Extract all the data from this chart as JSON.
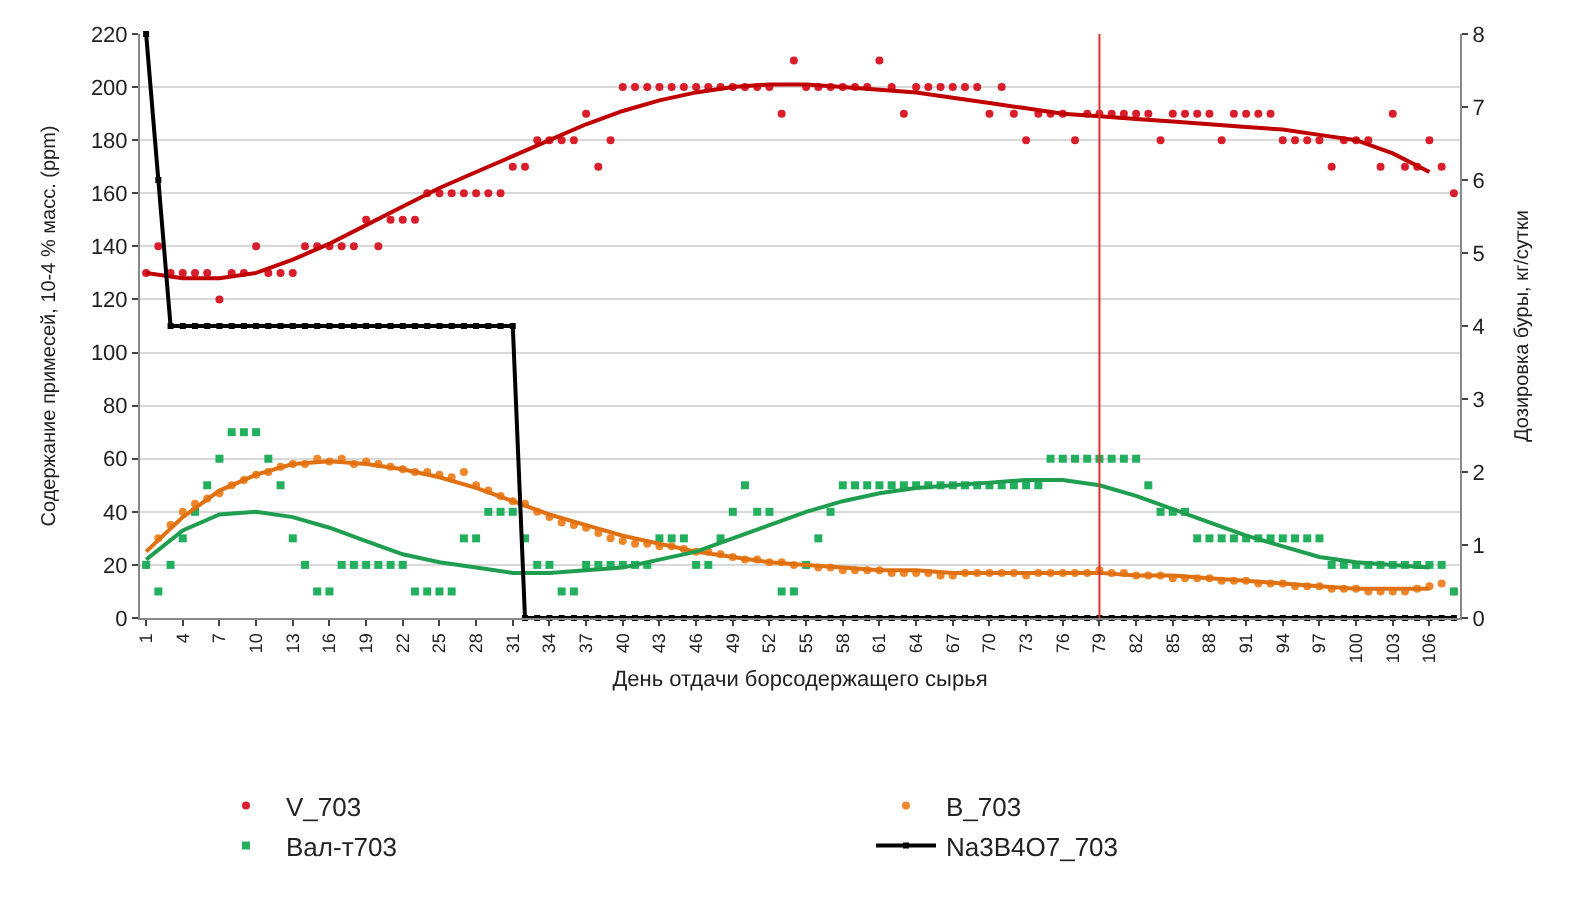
{
  "chart_data": {
    "type": "scatter",
    "xlabel": "День отдачи борсодержащего сырья",
    "ylabel": "Содержание примесей, 10-4 % масс. (ppm)",
    "y2label": "Дозировка буры, кг/сутки",
    "categories": [
      "1",
      null,
      null,
      "4",
      null,
      null,
      "7",
      null,
      null,
      "10",
      null,
      null,
      "13",
      null,
      null,
      "16",
      null,
      null,
      "19",
      null,
      null,
      "22",
      null,
      null,
      "25",
      null,
      null,
      "28",
      null,
      null,
      "31",
      null,
      null,
      "34",
      null,
      null,
      "37",
      null,
      null,
      "40",
      null,
      null,
      "43",
      null,
      null,
      "46",
      null,
      null,
      "49",
      null,
      null,
      "52",
      null,
      null,
      "55",
      null,
      null,
      "58",
      null,
      null,
      "61",
      null,
      null,
      "64",
      null,
      null,
      "67",
      null,
      null,
      "70",
      null,
      null,
      "73",
      null,
      null,
      "76",
      null,
      null,
      "79",
      null,
      null,
      "82",
      null,
      null,
      "85",
      null,
      null,
      "88",
      null,
      null,
      "91",
      null,
      null,
      "94",
      null,
      null,
      "97",
      null,
      null,
      "100",
      null,
      null,
      "103",
      null,
      null,
      "106",
      null,
      null
    ],
    "ylim": [
      0,
      220
    ],
    "yticks": [
      0,
      20,
      40,
      60,
      80,
      100,
      120,
      140,
      160,
      180,
      200,
      220
    ],
    "y2lim": [
      0,
      8
    ],
    "y2ticks": [
      0,
      1,
      2,
      3,
      4,
      5,
      6,
      7,
      8
    ],
    "grid": "y",
    "legend": "bottom",
    "ref_lines": [
      {
        "axis": "x",
        "value": "79",
        "color": "#e03030"
      }
    ],
    "series": [
      {
        "name": "V_703",
        "marker": "circle",
        "color": "#d81e2a",
        "values": [
          130,
          140,
          130,
          130,
          130,
          130,
          120,
          130,
          130,
          140,
          130,
          130,
          130,
          140,
          140,
          140,
          140,
          140,
          150,
          140,
          150,
          150,
          150,
          160,
          160,
          160,
          160,
          160,
          160,
          160,
          170,
          170,
          180,
          180,
          180,
          180,
          190,
          170,
          180,
          200,
          200,
          200,
          200,
          200,
          200,
          200,
          200,
          200,
          200,
          200,
          200,
          200,
          190,
          210,
          200,
          200,
          200,
          200,
          200,
          200,
          210,
          200,
          190,
          200,
          200,
          200,
          200,
          200,
          200,
          190,
          200,
          190,
          180,
          190,
          190,
          190,
          180,
          190,
          190,
          190,
          190,
          190,
          190,
          180,
          190,
          190,
          190,
          190,
          180,
          190,
          190,
          190,
          190,
          180,
          180,
          180,
          180,
          170,
          180,
          180,
          180,
          170,
          190,
          170,
          170,
          180,
          170,
          160
        ]
      },
      {
        "name": "B_703",
        "marker": "circle",
        "color": "#f0862a",
        "values": [
          20,
          30,
          35,
          40,
          43,
          45,
          47,
          50,
          52,
          54,
          55,
          57,
          58,
          58,
          60,
          59,
          60,
          58,
          59,
          58,
          57,
          56,
          55,
          55,
          54,
          53,
          55,
          50,
          48,
          46,
          44,
          43,
          40,
          38,
          36,
          35,
          34,
          32,
          30,
          29,
          28,
          28,
          27,
          27,
          26,
          25,
          25,
          24,
          23,
          22,
          22,
          21,
          21,
          20,
          20,
          19,
          19,
          18,
          18,
          18,
          18,
          17,
          17,
          17,
          17,
          16,
          16,
          17,
          17,
          17,
          17,
          17,
          16,
          17,
          17,
          17,
          17,
          17,
          18,
          17,
          17,
          16,
          16,
          16,
          15,
          15,
          15,
          15,
          14,
          14,
          14,
          13,
          13,
          13,
          12,
          12,
          12,
          11,
          11,
          11,
          10,
          10,
          10,
          10,
          11,
          12,
          13,
          10
        ]
      },
      {
        "name": "Вал-т703",
        "marker": "square",
        "color": "#22b05e",
        "values": [
          20,
          10,
          20,
          30,
          40,
          50,
          60,
          70,
          70,
          70,
          60,
          50,
          30,
          20,
          10,
          10,
          20,
          20,
          20,
          20,
          20,
          20,
          10,
          10,
          10,
          10,
          30,
          30,
          40,
          40,
          40,
          30,
          20,
          20,
          10,
          10,
          20,
          20,
          20,
          20,
          20,
          20,
          30,
          30,
          30,
          20,
          20,
          30,
          40,
          50,
          40,
          40,
          10,
          10,
          20,
          30,
          40,
          50,
          50,
          50,
          50,
          50,
          50,
          50,
          50,
          50,
          50,
          50,
          50,
          50,
          50,
          50,
          50,
          50,
          60,
          60,
          60,
          60,
          60,
          60,
          60,
          60,
          50,
          40,
          40,
          40,
          30,
          30,
          30,
          30,
          30,
          30,
          30,
          30,
          30,
          30,
          30,
          20,
          20,
          20,
          20,
          20,
          20,
          20,
          20,
          20,
          20,
          10
        ]
      },
      {
        "name": "Na3B4O7_703",
        "type": "line",
        "axis": "y2",
        "marker": "square",
        "line_style": "solid",
        "color": "#000000",
        "values": [
          8,
          6,
          4,
          4,
          4,
          4,
          4,
          4,
          4,
          4,
          4,
          4,
          4,
          4,
          4,
          4,
          4,
          4,
          4,
          4,
          4,
          4,
          4,
          4,
          4,
          4,
          4,
          4,
          4,
          4,
          4,
          0,
          0,
          0,
          0,
          0,
          0,
          0,
          0,
          0,
          0,
          0,
          0,
          0,
          0,
          0,
          0,
          0,
          0,
          0,
          0,
          0,
          0,
          0,
          0,
          0,
          0,
          0,
          0,
          0,
          0,
          0,
          0,
          0,
          0,
          0,
          0,
          0,
          0,
          0,
          0,
          0,
          0,
          0,
          0,
          0,
          0,
          0,
          0,
          0,
          0,
          0,
          0,
          0,
          0,
          0,
          0,
          0,
          0,
          0,
          0,
          0,
          0,
          0,
          0,
          0,
          0,
          0,
          0,
          0,
          0,
          0,
          0,
          0,
          0,
          0,
          0,
          0
        ]
      },
      {
        "type": "line",
        "marker": "none",
        "line_style": "solid",
        "color": "#c00000",
        "x": [
          "1",
          "4",
          "7",
          "10",
          "13",
          "16",
          "19",
          "22",
          "25",
          "28",
          "31",
          "34",
          "37",
          "40",
          "43",
          "46",
          "49",
          "52",
          "55",
          "58",
          "61",
          "64",
          "67",
          "70",
          "73",
          "76",
          "79",
          "82",
          "85",
          "88",
          "91",
          "94",
          "97",
          "100",
          "103",
          "106"
        ],
        "values": [
          130,
          128,
          128,
          130,
          135,
          141,
          148,
          155,
          162,
          168,
          174,
          180,
          186,
          191,
          195,
          198,
          200,
          201,
          201,
          200,
          199,
          198,
          196,
          194,
          192,
          190,
          189,
          188,
          187,
          186,
          185,
          184,
          182,
          180,
          175,
          168
        ]
      },
      {
        "type": "line",
        "marker": "none",
        "line_style": "solid",
        "color": "#e07010",
        "x": [
          "1",
          "4",
          "7",
          "10",
          "13",
          "16",
          "19",
          "22",
          "25",
          "28",
          "31",
          "34",
          "37",
          "40",
          "43",
          "46",
          "49",
          "52",
          "55",
          "58",
          "61",
          "64",
          "67",
          "70",
          "73",
          "76",
          "79",
          "82",
          "85",
          "88",
          "91",
          "94",
          "97",
          "100",
          "103",
          "106"
        ],
        "values": [
          25,
          38,
          48,
          54,
          58,
          59,
          58,
          56,
          53,
          49,
          44,
          39,
          35,
          31,
          28,
          25,
          23,
          21,
          20,
          19,
          18,
          18,
          17,
          17,
          17,
          17,
          17,
          16,
          16,
          15,
          14,
          13,
          12,
          11,
          11,
          11
        ]
      },
      {
        "type": "line",
        "marker": "none",
        "line_style": "solid",
        "color": "#1f9e50",
        "x": [
          "1",
          "4",
          "7",
          "10",
          "13",
          "16",
          "19",
          "22",
          "25",
          "28",
          "31",
          "34",
          "37",
          "40",
          "43",
          "46",
          "49",
          "52",
          "55",
          "58",
          "61",
          "64",
          "67",
          "70",
          "73",
          "76",
          "79",
          "82",
          "85",
          "88",
          "91",
          "94",
          "97",
          "100",
          "103",
          "106"
        ],
        "values": [
          22,
          33,
          39,
          40,
          38,
          34,
          29,
          24,
          21,
          19,
          17,
          17,
          18,
          19,
          22,
          25,
          30,
          35,
          40,
          44,
          47,
          49,
          50,
          51,
          52,
          52,
          50,
          46,
          41,
          36,
          31,
          27,
          23,
          21,
          20,
          19
        ]
      }
    ]
  }
}
